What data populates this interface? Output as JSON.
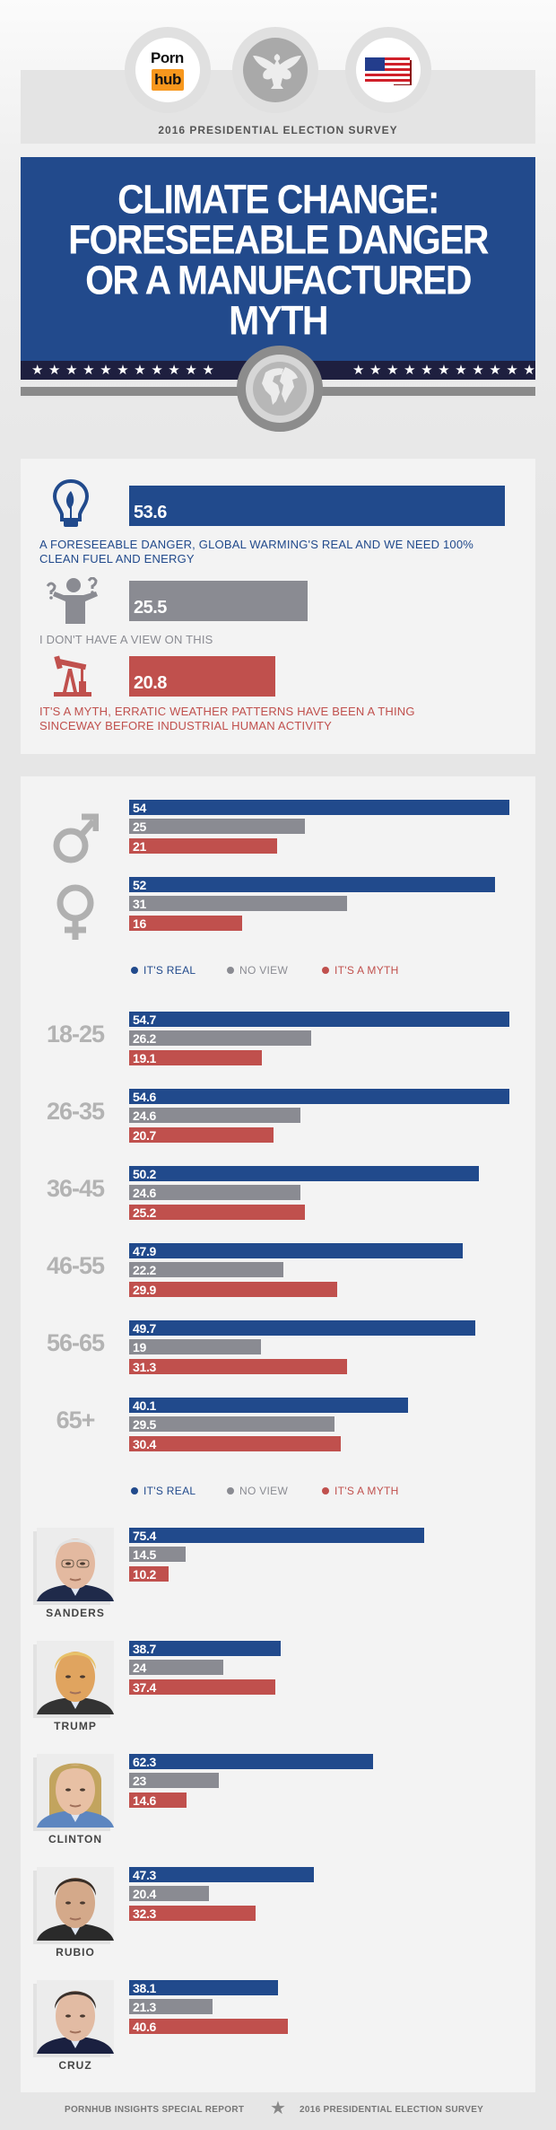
{
  "header": {
    "logo": {
      "line1": "Porn",
      "line2": "hub"
    },
    "emblem_icon": "presidential-eagle",
    "flag_icon": "us-flag",
    "survey_label": "2016 PRESIDENTIAL ELECTION SURVEY"
  },
  "title": {
    "lines": [
      "CLIMATE CHANGE:",
      "FORESEEABLE DANGER",
      "OR A MANUFACTURED",
      "MYTH"
    ]
  },
  "divider": {
    "icon": "globe",
    "stars_left": "★★★★★★★★★★★",
    "stars_right": "★★★★★★★★★★★"
  },
  "colors": {
    "real": "#214a8c",
    "no_view": "#8a8b92",
    "myth": "#c0504d",
    "title_bg": "#224a8c"
  },
  "chart_data": [
    {
      "type": "bar",
      "orientation": "horizontal",
      "categories": [
        "A FORESEEABLE DANGER, GLOBAL WARMING'S REAL AND WE NEED 100% CLEAN FUEL AND ENERGY",
        "I DON'T HAVE A VIEW ON THIS",
        "IT'S A MYTH, ERRATIC WEATHER PATTERNS HAVE BEEN A THING SINCEWAY BEFORE INDUSTRIAL HUMAN ACTIVITY"
      ],
      "category_lines": [
        [
          "A FORESEEABLE DANGER, GLOBAL WARMING'S REAL AND WE NEED 100%",
          "CLEAN FUEL AND ENERGY"
        ],
        [
          "I DON'T HAVE A VIEW ON THIS"
        ],
        [
          "IT'S A MYTH, ERRATIC WEATHER PATTERNS HAVE BEEN A THING",
          "SINCEWAY BEFORE INDUSTRIAL HUMAN ACTIVITY"
        ]
      ],
      "category_icons": [
        "lightbulb-leaf",
        "confused-person",
        "oil-pump"
      ],
      "values": [
        53.6,
        25.5,
        20.8
      ]
    },
    {
      "type": "bar",
      "orientation": "horizontal",
      "category_icons": [
        "male-symbol",
        "female-symbol"
      ],
      "series": [
        {
          "name": "IT'S REAL",
          "values": [
            54,
            52
          ]
        },
        {
          "name": "NO VIEW",
          "values": [
            25,
            31
          ]
        },
        {
          "name": "IT'S A MYTH",
          "values": [
            21,
            16
          ]
        }
      ],
      "legend": "bottom"
    },
    {
      "type": "bar",
      "orientation": "horizontal",
      "categories": [
        "18-25",
        "26-35",
        "36-45",
        "46-55",
        "56-65",
        "65+"
      ],
      "series": [
        {
          "name": "IT'S REAL",
          "values": [
            54.7,
            54.6,
            50.2,
            47.9,
            49.7,
            40.1
          ]
        },
        {
          "name": "NO VIEW",
          "values": [
            26.2,
            24.6,
            24.6,
            22.2,
            19,
            29.5
          ]
        },
        {
          "name": "IT'S A MYTH",
          "values": [
            19.1,
            20.7,
            25.2,
            29.9,
            31.3,
            30.4
          ]
        }
      ],
      "legend": "bottom"
    },
    {
      "type": "bar",
      "orientation": "horizontal",
      "categories": [
        "SANDERS",
        "TRUMP",
        "CLINTON",
        "RUBIO",
        "CRUZ"
      ],
      "series": [
        {
          "name": "IT'S REAL",
          "values": [
            75.4,
            38.7,
            62.3,
            47.3,
            38.1
          ]
        },
        {
          "name": "NO VIEW",
          "values": [
            14.5,
            24,
            23,
            20.4,
            21.3
          ]
        },
        {
          "name": "IT'S A MYTH",
          "values": [
            10.2,
            37.4,
            14.6,
            32.3,
            40.6
          ]
        }
      ]
    }
  ],
  "footer": {
    "left": "PORNHUB INSIGHTS SPECIAL REPORT",
    "separator_icon": "star",
    "right": "2016 PRESIDENTIAL ELECTION SURVEY"
  }
}
